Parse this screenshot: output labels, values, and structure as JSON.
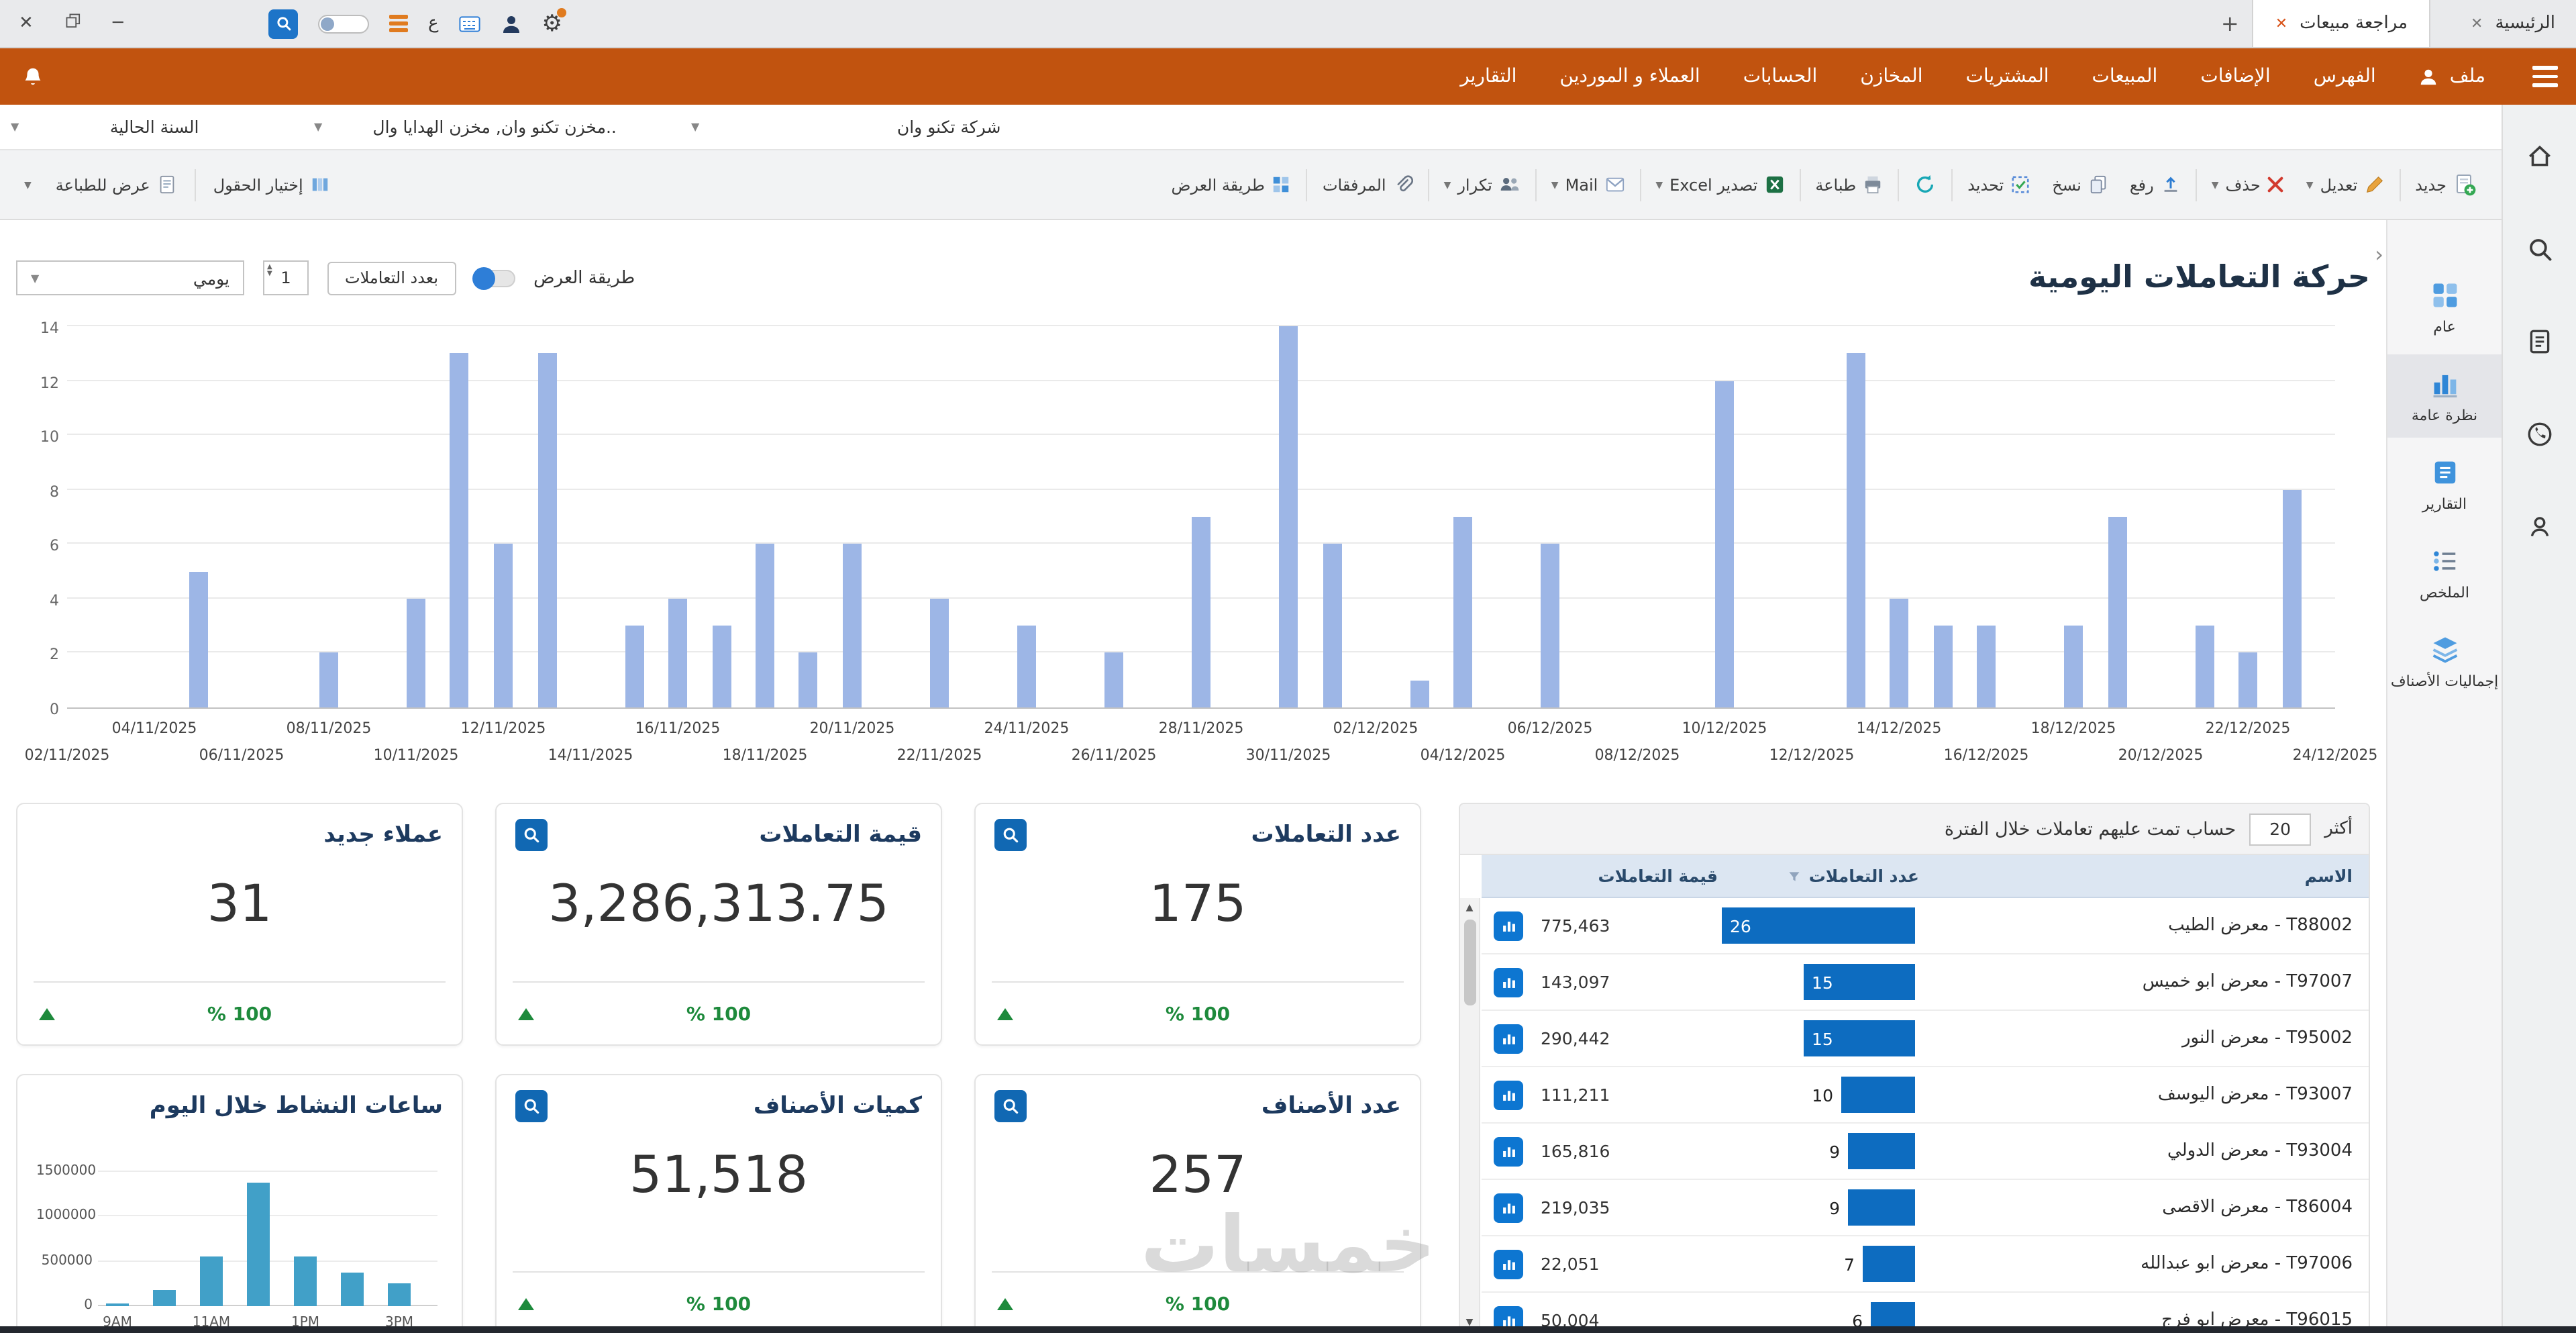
{
  "titlebar": {
    "tabs": [
      {
        "label": "الرئيسية",
        "active": false
      },
      {
        "label": "مراجعة مبيعات",
        "active": true
      }
    ],
    "lang_badge": "ع"
  },
  "menubar": {
    "items": [
      {
        "label": "ملف",
        "icon": "user-icon"
      },
      {
        "label": "الفهرس"
      },
      {
        "label": "الإضافات"
      },
      {
        "label": "المبيعات"
      },
      {
        "label": "المشتريات"
      },
      {
        "label": "المخازن"
      },
      {
        "label": "الحسابات"
      },
      {
        "label": "العملاء و الموردين"
      },
      {
        "label": "التقارير"
      }
    ]
  },
  "filterbar": {
    "company": "شركة تكنو وان",
    "warehouse": "مخزن تكنو وان, مخزن الهدايا وال..",
    "year": "السنة الحالية"
  },
  "toolbar": {
    "right": [
      {
        "label": "جديد",
        "icon": "new-icon",
        "sep_after": true
      },
      {
        "label": "تعديل",
        "icon": "edit-icon",
        "caret": true
      },
      {
        "label": "حذف",
        "icon": "delete-icon",
        "caret": true,
        "sep_after": true
      },
      {
        "label": "رفع",
        "icon": "upload-icon"
      },
      {
        "label": "نسخ",
        "icon": "copy-icon"
      },
      {
        "label": "تحديد",
        "icon": "select-icon",
        "sep_after": true
      },
      {
        "label": "",
        "icon": "refresh-icon",
        "sep_after": true
      },
      {
        "label": "طباعة",
        "icon": "print-icon",
        "sep_after": true
      },
      {
        "label": "تصدير Excel",
        "icon": "excel-icon",
        "caret": true,
        "sep_after": true
      },
      {
        "label": "Mail",
        "icon": "mail-icon",
        "caret": true,
        "sep_after": true
      },
      {
        "label": "تكرار",
        "icon": "repeat-icon",
        "caret": true,
        "sep_after": true
      },
      {
        "label": "المرفقات",
        "icon": "attachment-icon",
        "sep_after": true
      },
      {
        "label": "طريقة العرض",
        "icon": "layout-icon"
      }
    ],
    "left": [
      {
        "label": "إختيار الحقول",
        "icon": "fields-icon",
        "sep_after": true
      },
      {
        "label": "عرض للطباعة",
        "icon": "print-preview-icon"
      }
    ]
  },
  "sidebar": {
    "items": [
      {
        "label": "عام",
        "icon": "general-grid-icon",
        "active": false
      },
      {
        "label": "نظرة عامة",
        "icon": "overview-chart-icon",
        "active": true
      },
      {
        "label": "التقارير",
        "icon": "reports-icon",
        "active": false
      },
      {
        "label": "الملخص",
        "icon": "summary-list-icon",
        "active": false
      },
      {
        "label": "إجماليات الأصناف",
        "icon": "totals-layers-icon",
        "active": false
      }
    ]
  },
  "edge_strip": {
    "icons": [
      "home-icon",
      "search-icon",
      "invoice-icon",
      "whatsapp-icon",
      "profile-icon"
    ]
  },
  "content_header": {
    "title": "حركة التعاملات اليومية",
    "view_mode_label": "طريقة العرض",
    "toggle_label": "بعدد التعاملات",
    "period_unit": "يومي",
    "period_value": "1"
  },
  "chart_data": [
    {
      "type": "bar",
      "title": "حركة التعاملات اليومية",
      "xlabel": "",
      "ylabel": "",
      "ylim": [
        0,
        14
      ],
      "y_ticks": [
        0,
        2,
        4,
        6,
        8,
        10,
        12,
        14
      ],
      "x_start": "02/11/2025",
      "x_end": "24/12/2025",
      "x_ticks_top": [
        "04/11/2025",
        "08/11/2025",
        "12/11/2025",
        "16/11/2025",
        "20/11/2025",
        "24/11/2025",
        "28/11/2025",
        "02/12/2025",
        "06/12/2025",
        "10/12/2025",
        "14/12/2025",
        "18/12/2025",
        "22/12/2025"
      ],
      "x_ticks_bottom": [
        "02/11/2025",
        "06/11/2025",
        "10/11/2025",
        "14/11/2025",
        "18/11/2025",
        "22/11/2025",
        "26/11/2025",
        "30/11/2025",
        "04/12/2025",
        "08/12/2025",
        "12/12/2025",
        "16/12/2025",
        "20/12/2025",
        "24/12/2025"
      ],
      "bar_color": "#9db6e6",
      "grid": true,
      "points": [
        {
          "date": "05/11/2025",
          "value": 5
        },
        {
          "date": "08/11/2025",
          "value": 2
        },
        {
          "date": "10/11/2025",
          "value": 4
        },
        {
          "date": "11/11/2025",
          "value": 13
        },
        {
          "date": "12/11/2025",
          "value": 6
        },
        {
          "date": "13/11/2025",
          "value": 13
        },
        {
          "date": "15/11/2025",
          "value": 3
        },
        {
          "date": "16/11/2025",
          "value": 4
        },
        {
          "date": "17/11/2025",
          "value": 3
        },
        {
          "date": "18/11/2025",
          "value": 6
        },
        {
          "date": "19/11/2025",
          "value": 2
        },
        {
          "date": "20/11/2025",
          "value": 6
        },
        {
          "date": "22/11/2025",
          "value": 4
        },
        {
          "date": "24/11/2025",
          "value": 3
        },
        {
          "date": "26/11/2025",
          "value": 2
        },
        {
          "date": "28/11/2025",
          "value": 7
        },
        {
          "date": "30/11/2025",
          "value": 14
        },
        {
          "date": "01/12/2025",
          "value": 6
        },
        {
          "date": "03/12/2025",
          "value": 1
        },
        {
          "date": "04/12/2025",
          "value": 7
        },
        {
          "date": "06/12/2025",
          "value": 6
        },
        {
          "date": "10/12/2025",
          "value": 12
        },
        {
          "date": "13/12/2025",
          "value": 13
        },
        {
          "date": "14/12/2025",
          "value": 4
        },
        {
          "date": "15/12/2025",
          "value": 3
        },
        {
          "date": "16/12/2025",
          "value": 3
        },
        {
          "date": "18/12/2025",
          "value": 3
        },
        {
          "date": "19/12/2025",
          "value": 7
        },
        {
          "date": "21/12/2025",
          "value": 3
        },
        {
          "date": "22/12/2025",
          "value": 2
        },
        {
          "date": "23/12/2025",
          "value": 8
        }
      ]
    },
    {
      "type": "bar",
      "title": "ساعات النشاط خلال اليوم",
      "categories": [
        "9AM",
        "10AM",
        "11AM",
        "12PM",
        "1PM",
        "2PM",
        "3PM"
      ],
      "values": [
        30000,
        180000,
        550000,
        1380000,
        550000,
        380000,
        250000
      ],
      "x_tick_labels": [
        "9AM",
        "11AM",
        "1PM",
        "3PM"
      ],
      "y_ticks": [
        0,
        500000,
        1000000,
        1500000
      ],
      "ylim": [
        0,
        1500000
      ],
      "bar_color": "#41a0c8",
      "grid": true
    }
  ],
  "cards": [
    {
      "title": "عدد التعاملات",
      "value": "175",
      "change": "% 100",
      "trend": "up",
      "zoom_icon": true
    },
    {
      "title": "قيمة التعاملات",
      "value": "3,286,313.75",
      "change": "% 100",
      "trend": "up",
      "zoom_icon": true
    },
    {
      "title": "عملاء جديد",
      "value": "31",
      "change": "% 100",
      "trend": "up",
      "zoom_icon": false
    },
    {
      "title": "عدد الأصناف",
      "value": "257",
      "change": "% 100",
      "trend": "up",
      "zoom_icon": true
    },
    {
      "title": "كميات الأصناف",
      "value": "51,518",
      "change": "% 100",
      "trend": "up",
      "zoom_icon": true
    },
    {
      "title": "ساعات النشاط خلال اليوم",
      "type": "chart",
      "zoom_icon": false
    }
  ],
  "accounts_panel": {
    "title": "حساب تمت عليهم تعاملات خلال الفترة",
    "top_label": "أكثر",
    "top_value": "20",
    "columns": [
      "الاسم",
      "عدد التعاملات",
      "قيمة التعاملات"
    ],
    "rows": [
      {
        "name": "T88002 - معرض الطيب",
        "count": 26,
        "value": "775,463"
      },
      {
        "name": "T97007 - معرض ابو خميس",
        "count": 15,
        "value": "143,097"
      },
      {
        "name": "T95002 - معرض النور",
        "count": 15,
        "value": "290,442"
      },
      {
        "name": "T93007 - معرض اليوسف",
        "count": 10,
        "value": "111,211"
      },
      {
        "name": "T93004 - معرض الدولي",
        "count": 9,
        "value": "165,816"
      },
      {
        "name": "T86004 - معرض الاقصى",
        "count": 9,
        "value": "219,035"
      },
      {
        "name": "T97006 - معرض ابو عبدالله",
        "count": 7,
        "value": "22,051"
      },
      {
        "name": "T96015 - معرض ابو فرج",
        "count": 6,
        "value": "50,004"
      }
    ]
  },
  "watermark": "خمسات",
  "colors": {
    "accent_orange": "#c1530f",
    "chart_bar": "#9db6e6",
    "data_bar": "#0d6cc0",
    "positive_green": "#1e8a3c",
    "table_header_bg": "#dce6f2",
    "mini_chart_bar": "#41a0c8",
    "card_icon_blue": "#1168b3"
  }
}
